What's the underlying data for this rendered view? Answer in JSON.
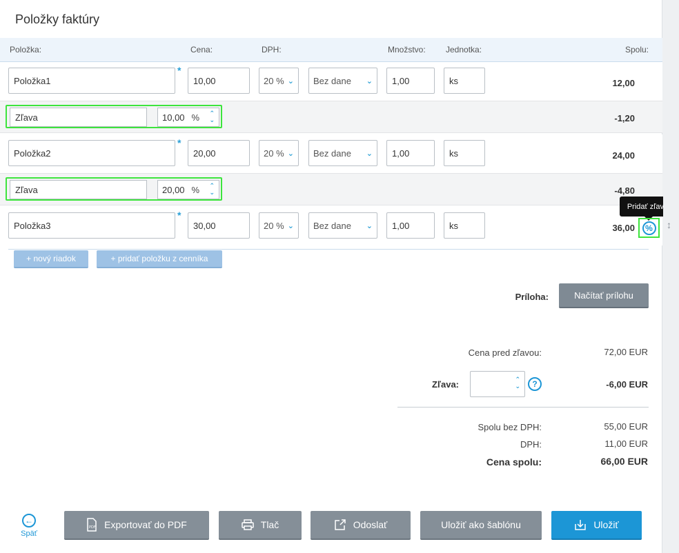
{
  "title": "Položky faktúry",
  "columns": {
    "item": "Položka:",
    "price": "Cena:",
    "vat": "DPH:",
    "quantity": "Množstvo:",
    "unit": "Jednotka:",
    "total": "Spolu:"
  },
  "items": [
    {
      "name": "Položka1",
      "price": "10,00",
      "vat": "20 %",
      "tax_type": "Bez dane",
      "quantity": "1,00",
      "unit": "ks",
      "total": "12,00"
    },
    {
      "name": "Položka2",
      "price": "20,00",
      "vat": "20 %",
      "tax_type": "Bez dane",
      "quantity": "1,00",
      "unit": "ks",
      "total": "24,00"
    },
    {
      "name": "Položka3",
      "price": "30,00",
      "vat": "20 %",
      "tax_type": "Bez dane",
      "quantity": "1,00",
      "unit": "ks",
      "total": "36,00"
    }
  ],
  "discounts": [
    {
      "name": "Zľava",
      "value": "10,00",
      "unit": "%",
      "total": "-1,20"
    },
    {
      "name": "Zľava",
      "value": "20,00",
      "unit": "%",
      "total": "-4,80"
    }
  ],
  "required_mark": "*",
  "tooltip": "Pridať zľavu",
  "buttons": {
    "new_row": "+ nový riadok",
    "add_from_pricelist": "+ pridať položku z cenníka",
    "load_attachment": "Načítať prílohu",
    "export_pdf": "Exportovať do PDF",
    "print": "Tlač",
    "send": "Odoslať",
    "save_template": "Uložiť ako šablónu",
    "save": "Uložiť",
    "back": "Späť"
  },
  "attachment_label": "Príloha:",
  "summary": {
    "price_before_discount_label": "Cena pred zľavou:",
    "price_before_discount": "72,00 EUR",
    "discount_label": "Zľava:",
    "discount_input": "",
    "discount_value": "-6,00 EUR",
    "subtotal_label": "Spolu bez DPH:",
    "subtotal": "55,00 EUR",
    "vat_label": "DPH:",
    "vat": "11,00 EUR",
    "grand_total_label": "Cena spolu:",
    "grand_total": "66,00 EUR"
  },
  "colors": {
    "accent": "#1c96d6",
    "highlight": "#3de43d",
    "button_gray": "#858f98"
  }
}
